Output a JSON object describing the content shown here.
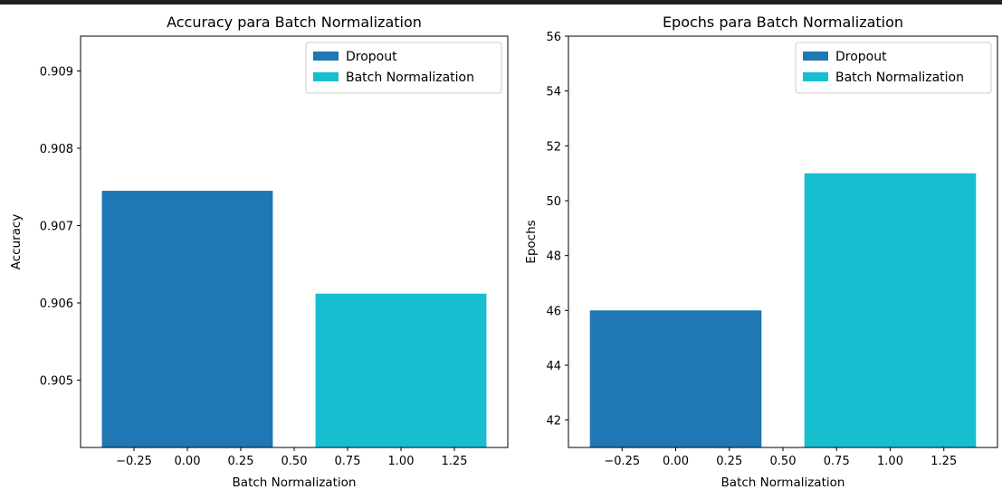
{
  "chart_data": [
    {
      "type": "bar",
      "title": "Accuracy para Batch Normalization",
      "xlabel": "Batch Normalization",
      "ylabel": "Accuracy",
      "bars": [
        {
          "name": "Dropout",
          "x": 0,
          "width": 0.8,
          "value": 0.90745,
          "color": "#1f77b4"
        },
        {
          "name": "Batch Normalization",
          "x": 1,
          "width": 0.8,
          "value": 0.90612,
          "color": "#17becf"
        }
      ],
      "xlim": [
        -0.5,
        1.5
      ],
      "ylim": [
        0.90413,
        0.90945
      ],
      "xticks": [
        -0.25,
        0.0,
        0.25,
        0.5,
        0.75,
        1.0,
        1.25
      ],
      "xtick_labels": [
        "−0.25",
        "0.00",
        "0.25",
        "0.50",
        "0.75",
        "1.00",
        "1.25"
      ],
      "yticks": [
        0.905,
        0.906,
        0.907,
        0.908,
        0.909
      ],
      "ytick_labels": [
        "0.905",
        "0.906",
        "0.907",
        "0.908",
        "0.909"
      ],
      "legend": {
        "position": "top-right",
        "entries": [
          {
            "label": "Dropout",
            "color": "#1f77b4"
          },
          {
            "label": "Batch Normalization",
            "color": "#17becf"
          }
        ]
      },
      "grid": false
    },
    {
      "type": "bar",
      "title": "Epochs para Batch Normalization",
      "xlabel": "Batch Normalization",
      "ylabel": "Epochs",
      "bars": [
        {
          "name": "Dropout",
          "x": 0,
          "width": 0.8,
          "value": 46,
          "color": "#1f77b4"
        },
        {
          "name": "Batch Normalization",
          "x": 1,
          "width": 0.8,
          "value": 51,
          "color": "#17becf"
        }
      ],
      "xlim": [
        -0.5,
        1.5
      ],
      "ylim": [
        41,
        56
      ],
      "xticks": [
        -0.25,
        0.0,
        0.25,
        0.5,
        0.75,
        1.0,
        1.25
      ],
      "xtick_labels": [
        "−0.25",
        "0.00",
        "0.25",
        "0.50",
        "0.75",
        "1.00",
        "1.25"
      ],
      "yticks": [
        42,
        44,
        46,
        48,
        50,
        52,
        54,
        56
      ],
      "ytick_labels": [
        "42",
        "44",
        "46",
        "48",
        "50",
        "52",
        "54",
        "56"
      ],
      "legend": {
        "position": "top-right",
        "entries": [
          {
            "label": "Dropout",
            "color": "#1f77b4"
          },
          {
            "label": "Batch Normalization",
            "color": "#17becf"
          }
        ]
      },
      "grid": false
    }
  ]
}
